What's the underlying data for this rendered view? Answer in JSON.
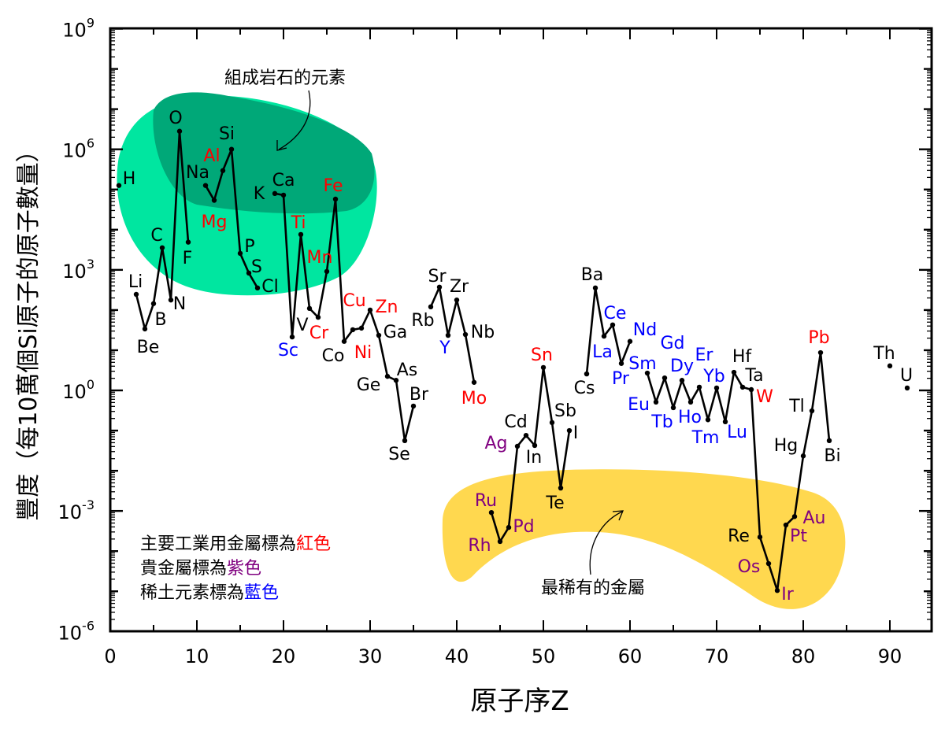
{
  "chart_data": {
    "type": "line",
    "title": "",
    "xlabel": "原子序Z",
    "ylabel": "豐度（每10萬個Si原子的原子數量）",
    "xlim": [
      0,
      95
    ],
    "ylim": [
      1e-06,
      1000000000.0
    ],
    "yscale": "log",
    "x_ticks": [
      "0",
      "10",
      "20",
      "30",
      "40",
      "50",
      "60",
      "70",
      "80",
      "90"
    ],
    "y_ticks": [
      {
        "base": "10",
        "exp": "9"
      },
      {
        "base": "10",
        "exp": "6"
      },
      {
        "base": "10",
        "exp": "3"
      },
      {
        "base": "10",
        "exp": "0"
      },
      {
        "base": "10",
        "exp": "-3"
      },
      {
        "base": "10",
        "exp": "-6"
      }
    ],
    "colors": {
      "industrial": "#ff0000",
      "precious": "#800080",
      "rare_earth": "#0000ff",
      "default": "#000000",
      "rock_region": "#00e6a0",
      "rock_core": "#00a878",
      "rare_region": "#ffd84f"
    },
    "annotations": {
      "rock_forming": "組成岩石的元素",
      "rarest_metals": "最稀有的金屬"
    },
    "legend": [
      {
        "text": "主要工業用金屬標為",
        "colored": "紅色",
        "category": "industrial"
      },
      {
        "text": "貴金屬標為",
        "colored": "紫色",
        "category": "precious"
      },
      {
        "text": "稀土元素標為",
        "colored": "藍色",
        "category": "rare_earth"
      }
    ],
    "points": [
      {
        "z": 1,
        "el": "H",
        "log": 5.1
      },
      {
        "z": 3,
        "el": "Li",
        "log": 2.39
      },
      {
        "z": 4,
        "el": "Be",
        "log": 1.53
      },
      {
        "z": 5,
        "el": "B",
        "log": 2.16
      },
      {
        "z": 6,
        "el": "C",
        "log": 3.55
      },
      {
        "z": 7,
        "el": "N",
        "log": 2.25
      },
      {
        "z": 8,
        "el": "O",
        "log": 6.45
      },
      {
        "z": 9,
        "el": "F",
        "log": 3.69
      },
      {
        "z": 11,
        "el": "Na",
        "log": 5.1
      },
      {
        "z": 12,
        "el": "Mg",
        "log": 4.73,
        "cat": "industrial"
      },
      {
        "z": 13,
        "el": "Al",
        "log": 5.47,
        "cat": "industrial"
      },
      {
        "z": 14,
        "el": "Si",
        "log": 6.0
      },
      {
        "z": 15,
        "el": "P",
        "log": 3.41
      },
      {
        "z": 16,
        "el": "S",
        "log": 2.92
      },
      {
        "z": 17,
        "el": "Cl",
        "log": 2.55
      },
      {
        "z": 19,
        "el": "K",
        "log": 4.9
      },
      {
        "z": 20,
        "el": "Ca",
        "log": 4.86
      },
      {
        "z": 21,
        "el": "Sc",
        "log": 1.33,
        "cat": "rare_earth"
      },
      {
        "z": 22,
        "el": "Ti",
        "log": 3.88,
        "cat": "industrial"
      },
      {
        "z": 23,
        "el": "V",
        "log": 2.04
      },
      {
        "z": 24,
        "el": "Cr",
        "log": 1.82,
        "cat": "industrial"
      },
      {
        "z": 25,
        "el": "Mn",
        "log": 2.96,
        "cat": "industrial"
      },
      {
        "z": 26,
        "el": "Fe",
        "log": 4.76,
        "cat": "industrial"
      },
      {
        "z": 27,
        "el": "Co",
        "log": 1.22
      },
      {
        "z": 28,
        "el": "Ni",
        "log": 1.51,
        "cat": "industrial"
      },
      {
        "z": 29,
        "el": "Cu",
        "log": 1.55,
        "cat": "industrial"
      },
      {
        "z": 30,
        "el": "Zn",
        "log": 2.0,
        "cat": "industrial"
      },
      {
        "z": 31,
        "el": "Ga",
        "log": 1.37
      },
      {
        "z": 32,
        "el": "Ge",
        "log": 0.35
      },
      {
        "z": 33,
        "el": "As",
        "log": 0.25
      },
      {
        "z": 34,
        "el": "Se",
        "log": -1.25
      },
      {
        "z": 35,
        "el": "Br",
        "log": -0.39
      },
      {
        "z": 37,
        "el": "Rb",
        "log": 2.08
      },
      {
        "z": 38,
        "el": "Sr",
        "log": 2.57
      },
      {
        "z": 39,
        "el": "Y",
        "log": 1.37,
        "cat": "rare_earth"
      },
      {
        "z": 40,
        "el": "Zr",
        "log": 2.25
      },
      {
        "z": 41,
        "el": "Nb",
        "log": 1.39
      },
      {
        "z": 42,
        "el": "Mo",
        "log": 0.2,
        "cat": "industrial"
      },
      {
        "z": 44,
        "el": "Ru",
        "log": -3.04,
        "cat": "precious"
      },
      {
        "z": 45,
        "el": "Rh",
        "log": -3.76,
        "cat": "precious"
      },
      {
        "z": 46,
        "el": "Pd",
        "log": -3.41,
        "cat": "precious"
      },
      {
        "z": 47,
        "el": "Ag",
        "log": -1.39,
        "cat": "precious"
      },
      {
        "z": 48,
        "el": "Cd",
        "log": -1.12
      },
      {
        "z": 49,
        "el": "In",
        "log": -1.37
      },
      {
        "z": 50,
        "el": "Sn",
        "log": 0.57,
        "cat": "industrial"
      },
      {
        "z": 51,
        "el": "Sb",
        "log": -0.8
      },
      {
        "z": 52,
        "el": "Te",
        "log": -2.43
      },
      {
        "z": 53,
        "el": "I",
        "log": -1.0
      },
      {
        "z": 55,
        "el": "Cs",
        "log": 0.41
      },
      {
        "z": 56,
        "el": "Ba",
        "log": 2.55
      },
      {
        "z": 57,
        "el": "La",
        "log": 1.35,
        "cat": "rare_earth"
      },
      {
        "z": 58,
        "el": "Ce",
        "log": 1.63,
        "cat": "rare_earth"
      },
      {
        "z": 59,
        "el": "Pr",
        "log": 0.67,
        "cat": "rare_earth"
      },
      {
        "z": 60,
        "el": "Nd",
        "log": 1.22,
        "cat": "rare_earth"
      },
      {
        "z": 62,
        "el": "Sm",
        "log": 0.43,
        "cat": "rare_earth"
      },
      {
        "z": 63,
        "el": "Eu",
        "log": -0.29,
        "cat": "rare_earth"
      },
      {
        "z": 64,
        "el": "Gd",
        "log": 0.31,
        "cat": "rare_earth"
      },
      {
        "z": 65,
        "el": "Tb",
        "log": -0.43,
        "cat": "rare_earth"
      },
      {
        "z": 66,
        "el": "Dy",
        "log": 0.25,
        "cat": "rare_earth"
      },
      {
        "z": 67,
        "el": "Ho",
        "log": -0.29,
        "cat": "rare_earth"
      },
      {
        "z": 68,
        "el": "Er",
        "log": 0.08,
        "cat": "rare_earth"
      },
      {
        "z": 69,
        "el": "Tm",
        "log": -0.73,
        "cat": "rare_earth"
      },
      {
        "z": 70,
        "el": "Yb",
        "log": 0.06,
        "cat": "rare_earth"
      },
      {
        "z": 71,
        "el": "Lu",
        "log": -0.78,
        "cat": "rare_earth"
      },
      {
        "z": 72,
        "el": "Hf",
        "log": 0.45
      },
      {
        "z": 73,
        "el": "Ta",
        "log": 0.08
      },
      {
        "z": 74,
        "el": "W",
        "log": 0.02,
        "cat": "industrial"
      },
      {
        "z": 75,
        "el": "Re",
        "log": -3.65
      },
      {
        "z": 76,
        "el": "Os",
        "log": -4.31,
        "cat": "precious"
      },
      {
        "z": 77,
        "el": "Ir",
        "log": -4.98,
        "cat": "precious"
      },
      {
        "z": 78,
        "el": "Pt",
        "log": -3.35,
        "cat": "precious"
      },
      {
        "z": 79,
        "el": "Au",
        "log": -3.14,
        "cat": "precious"
      },
      {
        "z": 80,
        "el": "Hg",
        "log": -1.63
      },
      {
        "z": 81,
        "el": "Tl",
        "log": -0.51
      },
      {
        "z": 82,
        "el": "Pb",
        "log": 0.94,
        "cat": "industrial"
      },
      {
        "z": 83,
        "el": "Bi",
        "log": -1.25
      },
      {
        "z": 90,
        "el": "Th",
        "log": 0.61
      },
      {
        "z": 92,
        "el": "U",
        "log": 0.06
      }
    ]
  }
}
